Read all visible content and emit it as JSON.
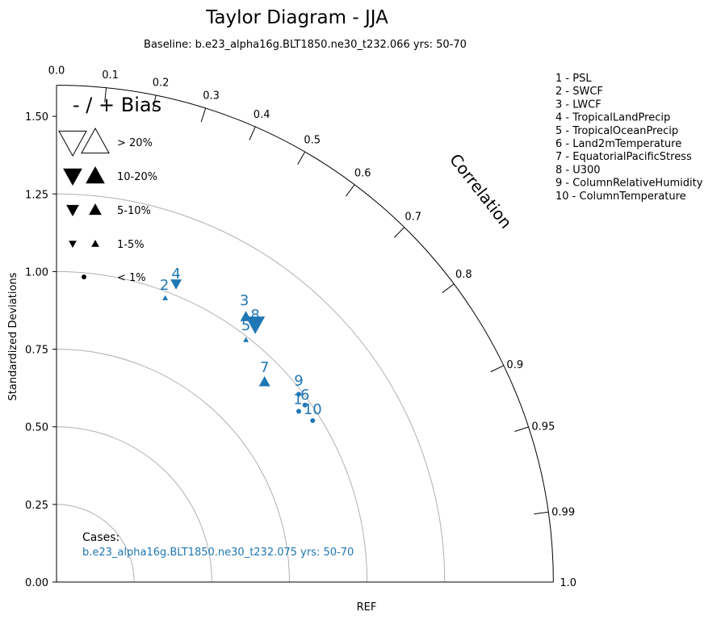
{
  "chart_data": {
    "type": "scatter",
    "title": "Taylor Diagram - JJA",
    "subtitle": "Baseline: b.e23_alpha16g.BLT1850.ne30_t232.066  yrs: 50-70",
    "ylabel": "Standardized Deviations",
    "xlabel": "REF",
    "corr_label": "Correlation",
    "ylim": [
      0,
      1.6
    ],
    "y_ticks": [
      "0.00",
      "0.25",
      "0.50",
      "0.75",
      "1.00",
      "1.25",
      "1.50"
    ],
    "y_tick_values": [
      0,
      0.25,
      0.5,
      0.75,
      1.0,
      1.25,
      1.5
    ],
    "corr_ticks": [
      "0.0",
      "0.1",
      "0.2",
      "0.3",
      "0.4",
      "0.5",
      "0.6",
      "0.7",
      "0.8",
      "0.9",
      "0.95",
      "0.99",
      "1.0"
    ],
    "corr_tick_values": [
      0.0,
      0.1,
      0.2,
      0.3,
      0.4,
      0.5,
      0.6,
      0.7,
      0.8,
      0.9,
      0.95,
      0.99,
      1.0
    ],
    "grid_arcs": [
      0.25,
      0.5,
      0.75,
      1.0,
      1.25
    ],
    "bias_legend": {
      "title": "- / + Bias",
      "rows": [
        {
          "label": "> 20%",
          "style": "open",
          "size": 17
        },
        {
          "label": "10-20%",
          "style": "filled",
          "size": 11
        },
        {
          "label": "5-10%",
          "style": "filled",
          "size": 7
        },
        {
          "label": "1-5%",
          "style": "filled",
          "size": 4
        },
        {
          "label": "< 1%",
          "style": "dot",
          "size": 3
        }
      ]
    },
    "variables": [
      "1 - PSL",
      "2 - SWCF",
      "3 - LWCF",
      "4 - TropicalLandPrecip",
      "5 - TropicalOceanPrecip",
      "6 - Land2mTemperature",
      "7 - EquatorialPacificStress",
      "8 - U300",
      "9 - ColumnRelativeHumidity",
      "10 - ColumnTemperature"
    ],
    "cases_label": "Cases:",
    "case_name": "b.e23_alpha16g.BLT1850.ne30_t232.075  yrs: 50-70",
    "series_color": "#1f77b4",
    "points": [
      {
        "id": "1",
        "x": 0.78,
        "y": 0.55,
        "marker": "dot",
        "bias": "< 1%"
      },
      {
        "id": "2",
        "x": 0.35,
        "y": 0.915,
        "marker": "up",
        "bias": "1-5%"
      },
      {
        "id": "3",
        "x": 0.61,
        "y": 0.855,
        "marker": "up",
        "bias": "10-20%"
      },
      {
        "id": "4",
        "x": 0.385,
        "y": 0.96,
        "marker": "down",
        "bias": "10-20%"
      },
      {
        "id": "5",
        "x": 0.61,
        "y": 0.78,
        "marker": "up",
        "bias": "1-5%"
      },
      {
        "id": "6",
        "x": 0.8,
        "y": 0.57,
        "marker": "dot",
        "bias": "< 1%"
      },
      {
        "id": "7",
        "x": 0.67,
        "y": 0.645,
        "marker": "up",
        "bias": "10-20%"
      },
      {
        "id": "8",
        "x": 0.64,
        "y": 0.83,
        "marker": "down",
        "bias": "> 20%"
      },
      {
        "id": "9",
        "x": 0.78,
        "y": 0.605,
        "marker": "dot",
        "bias": "< 1%"
      },
      {
        "id": "10",
        "x": 0.825,
        "y": 0.52,
        "marker": "dot",
        "bias": "< 1%"
      }
    ]
  }
}
